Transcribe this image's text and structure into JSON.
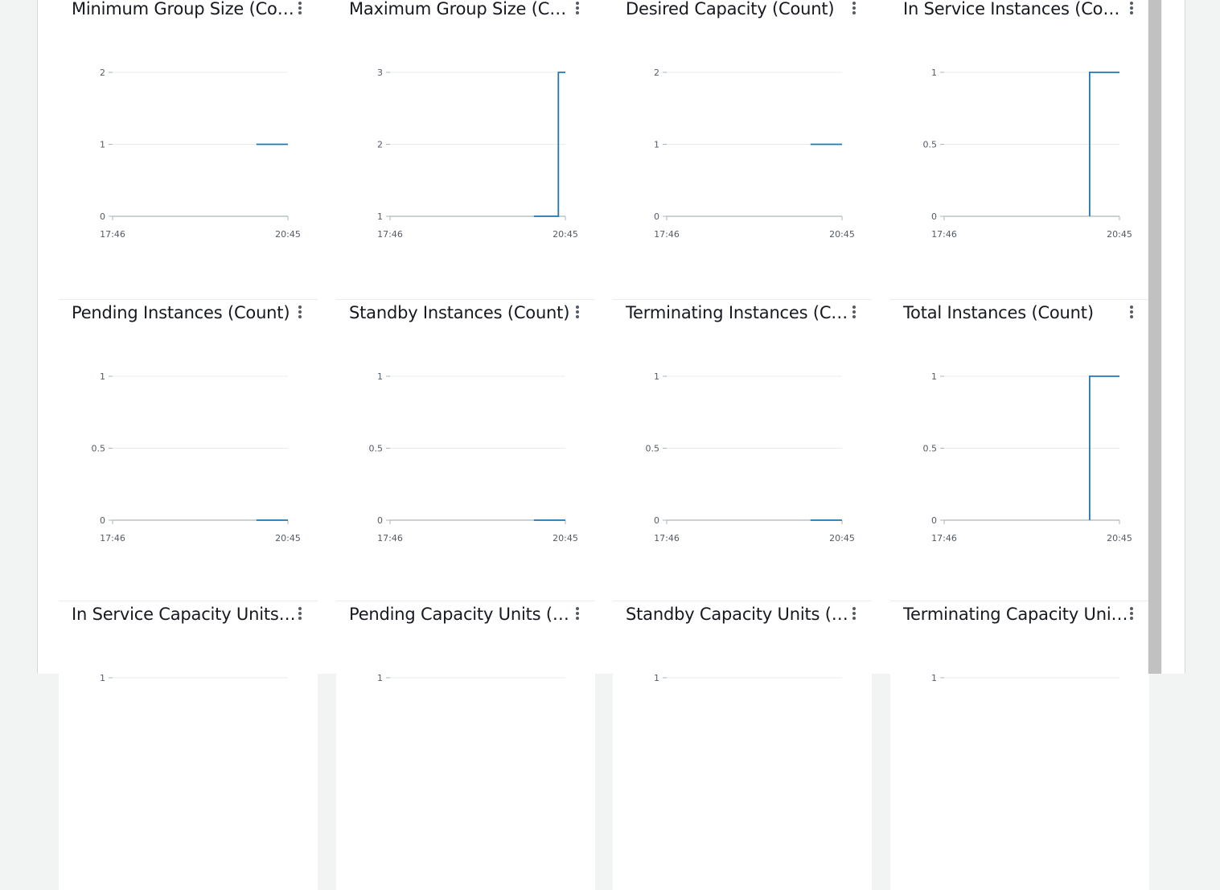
{
  "colors": {
    "series": "#1f77b4",
    "grid": "#e9ebed",
    "axis": "#aab7b8",
    "text": "#16191f",
    "tick": "#545b64"
  },
  "menu_icon": "more-vertical-icon",
  "chart_data": [
    {
      "type": "line",
      "title": "Minimum Group Size (Count)",
      "ylim": [
        0,
        2
      ],
      "yticks": [
        "2",
        "1",
        "0"
      ],
      "x": [
        0.82,
        1.0
      ],
      "y": [
        1,
        1
      ],
      "xticklabels": [
        "17:46",
        "20:45"
      ]
    },
    {
      "type": "line",
      "title": "Maximum Group Size (Count)",
      "ylim": [
        1,
        3
      ],
      "yticks": [
        "3",
        "2",
        "1"
      ],
      "x": [
        0.82,
        0.96,
        0.96,
        1.0
      ],
      "y": [
        1,
        1,
        3,
        3
      ],
      "xticklabels": [
        "17:46",
        "20:45"
      ]
    },
    {
      "type": "line",
      "title": "Desired Capacity (Count)",
      "ylim": [
        0,
        2
      ],
      "yticks": [
        "2",
        "1",
        "0"
      ],
      "x": [
        0.82,
        1.0
      ],
      "y": [
        1,
        1
      ],
      "xticklabels": [
        "17:46",
        "20:45"
      ]
    },
    {
      "type": "line",
      "title": "In Service Instances (Count)",
      "ylim": [
        0,
        1
      ],
      "yticks": [
        "1",
        "0.5",
        "0"
      ],
      "x": [
        0.83,
        0.83,
        1.0
      ],
      "y": [
        0,
        1,
        1
      ],
      "xticklabels": [
        "17:46",
        "20:45"
      ]
    },
    {
      "type": "line",
      "title": "Pending Instances (Count)",
      "ylim": [
        0,
        1
      ],
      "yticks": [
        "1",
        "0.5",
        "0"
      ],
      "x": [
        0.82,
        1.0
      ],
      "y": [
        0,
        0
      ],
      "xticklabels": [
        "17:46",
        "20:45"
      ]
    },
    {
      "type": "line",
      "title": "Standby Instances (Count)",
      "ylim": [
        0,
        1
      ],
      "yticks": [
        "1",
        "0.5",
        "0"
      ],
      "x": [
        0.82,
        1.0
      ],
      "y": [
        0,
        0
      ],
      "xticklabels": [
        "17:46",
        "20:45"
      ]
    },
    {
      "type": "line",
      "title": "Terminating Instances (Count)",
      "ylim": [
        0,
        1
      ],
      "yticks": [
        "1",
        "0.5",
        "0"
      ],
      "x": [
        0.82,
        1.0
      ],
      "y": [
        0,
        0
      ],
      "xticklabels": [
        "17:46",
        "20:45"
      ]
    },
    {
      "type": "line",
      "title": "Total Instances (Count)",
      "ylim": [
        0,
        1
      ],
      "yticks": [
        "1",
        "0.5",
        "0"
      ],
      "x": [
        0.83,
        0.83,
        1.0
      ],
      "y": [
        0,
        1,
        1
      ],
      "xticklabels": [
        "17:46",
        "20:45"
      ]
    },
    {
      "type": "line",
      "title": "In Service Capacity Units (Count)",
      "yticks": [
        "1"
      ]
    },
    {
      "type": "line",
      "title": "Pending Capacity Units (Count)",
      "yticks": [
        "1"
      ]
    },
    {
      "type": "line",
      "title": "Standby Capacity Units (Count)",
      "yticks": [
        "1"
      ]
    },
    {
      "type": "line",
      "title": "Terminating Capacity Units (Count)",
      "yticks": [
        "1"
      ]
    }
  ]
}
